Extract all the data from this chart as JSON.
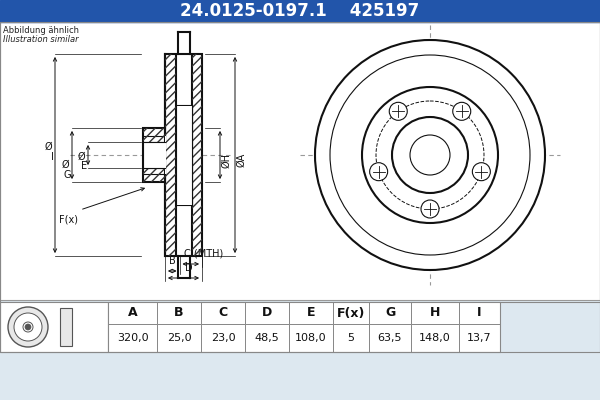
{
  "part_number": "24.0125-0197.1",
  "ref_number": "425197",
  "note_line1": "Abbildung ähnlich",
  "note_line2": "Illustration similar",
  "bg_color": "#dde8f0",
  "header_bg": "#2255aa",
  "header_text_color": "#ffffff",
  "table_headers": [
    "A",
    "B",
    "C",
    "D",
    "E",
    "F(x)",
    "G",
    "H",
    "I"
  ],
  "table_values": [
    "320,0",
    "25,0",
    "23,0",
    "48,5",
    "108,0",
    "5",
    "63,5",
    "148,0",
    "13,7"
  ],
  "line_color": "#111111",
  "dim_color": "#111111",
  "hatch_color": "#333333",
  "center_line_color": "#999999",
  "ate_color": "#cccccc"
}
